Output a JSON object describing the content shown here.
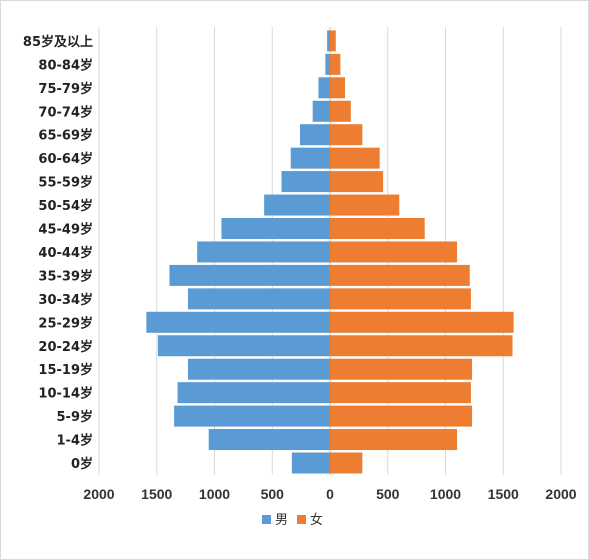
{
  "chart_data": {
    "type": "bar",
    "orientation": "horizontal",
    "subtype": "population-pyramid",
    "categories": [
      "0岁",
      "1-4岁",
      "5-9岁",
      "10-14岁",
      "15-19岁",
      "20-24岁",
      "25-29岁",
      "30-34岁",
      "35-39岁",
      "40-44岁",
      "45-49岁",
      "50-54岁",
      "55-59岁",
      "60-64岁",
      "65-69岁",
      "70-74岁",
      "75-79岁",
      "80-84岁",
      "85岁及以上"
    ],
    "series": [
      {
        "name": "男",
        "color": "#5b9bd5",
        "values": [
          330,
          1050,
          1350,
          1320,
          1230,
          1490,
          1590,
          1230,
          1390,
          1150,
          940,
          570,
          420,
          340,
          260,
          150,
          100,
          40,
          25
        ]
      },
      {
        "name": "女",
        "color": "#ed7d31",
        "values": [
          280,
          1100,
          1230,
          1220,
          1230,
          1580,
          1590,
          1220,
          1210,
          1100,
          820,
          600,
          460,
          430,
          280,
          180,
          130,
          90,
          50
        ]
      }
    ],
    "xlim": [
      -2000,
      2000
    ],
    "x_ticks": [
      -2000,
      -1500,
      -1000,
      -500,
      0,
      500,
      1000,
      1500,
      2000
    ],
    "x_tick_labels": [
      "2000",
      "1500",
      "1000",
      "500",
      "0",
      "500",
      "1000",
      "1500",
      "2000"
    ],
    "legend": {
      "position": "bottom"
    },
    "grid": true
  }
}
